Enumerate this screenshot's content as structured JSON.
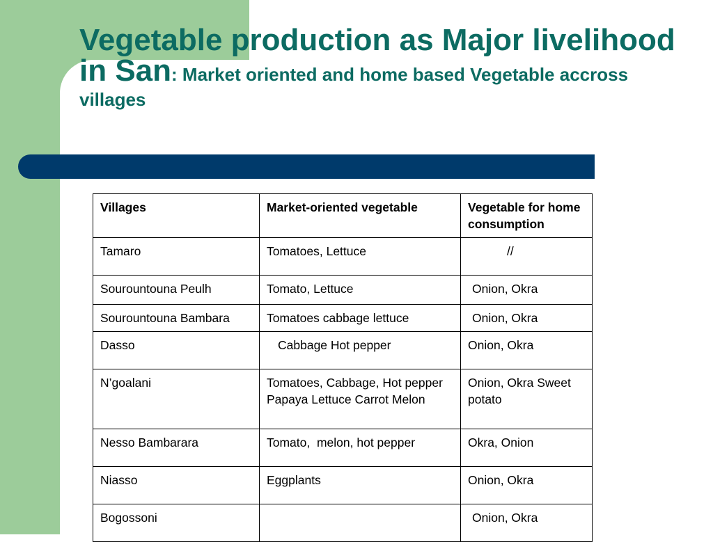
{
  "slide": {
    "title_line1": "Vegetable production as Major livelihood",
    "title_line2_big": "in San",
    "title_line2_small": ": Market oriented and home based Vegetable accross",
    "title_line3": "villages"
  },
  "table": {
    "headers": [
      "Villages",
      "Market-oriented vegetable",
      "Vegetable for home consumption"
    ],
    "rows": [
      [
        "Tamaro",
        "Tomatoes, Lettuce",
        "//"
      ],
      [
        "Sourountouna Peulh",
        "Tomato, Lettuce",
        "Onion, Okra"
      ],
      [
        "Sourountouna Bambara",
        "Tomatoes cabbage lettuce",
        "Onion, Okra"
      ],
      [
        "Dasso",
        "Cabbage Hot pepper",
        "Onion, Okra"
      ],
      [
        "N’goalani",
        "Tomatoes, Cabbage, Hot pepper Papaya Lettuce Carrot Melon",
        "Onion, Okra Sweet potato"
      ],
      [
        "Nesso Bambarara",
        "Tomato,  melon, hot pepper",
        "Okra, Onion"
      ],
      [
        "Niasso",
        "Eggplants",
        "Onion, Okra"
      ],
      [
        "Bogossoni",
        "",
        "Onion, Okra"
      ]
    ]
  },
  "colors": {
    "title": "#0c6b62",
    "green_strip": "#9ccc9a",
    "blue_bar": "#003a6b"
  }
}
